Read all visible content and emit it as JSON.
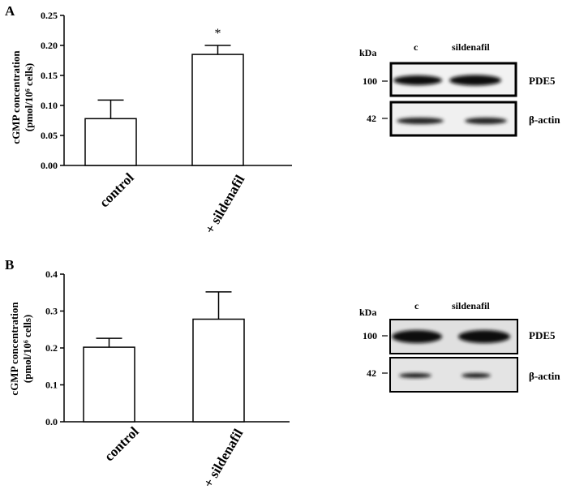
{
  "chart_data": [
    {
      "type": "bar",
      "panel": "A",
      "categories": [
        "control",
        "+ sildenafil"
      ],
      "values": [
        0.078,
        0.185
      ],
      "errors": [
        0.031,
        0.015
      ],
      "annotations": [
        "",
        "*"
      ],
      "ylabel_line1": "cGMP concentration",
      "ylabel_line2": "(pmol/10⁶ cells)",
      "ylim": [
        0,
        0.25
      ],
      "yticks": [
        "0.00",
        "0.05",
        "0.10",
        "0.15",
        "0.20",
        "0.25"
      ],
      "bar_color": "#ffffff",
      "edge_color": "#000000"
    },
    {
      "type": "bar",
      "panel": "B",
      "categories": [
        "control",
        "+ sildenafil"
      ],
      "values": [
        0.202,
        0.278
      ],
      "errors": [
        0.024,
        0.074
      ],
      "annotations": [
        "",
        ""
      ],
      "ylabel_line1": "cGMP concentration",
      "ylabel_line2": "(pmol/10⁶ cells)",
      "ylim": [
        0,
        0.4
      ],
      "yticks": [
        "0.0",
        "0.1",
        "0.2",
        "0.3",
        "0.4"
      ],
      "bar_color": "#ffffff",
      "edge_color": "#000000"
    }
  ],
  "blots": [
    {
      "unit": "kDa",
      "lanes": [
        "c",
        "sildenafil"
      ],
      "rows": [
        {
          "marker": "100",
          "label": "PDE5"
        },
        {
          "marker": "42",
          "label": "β-actin"
        }
      ]
    },
    {
      "unit": "kDa",
      "lanes": [
        "c",
        "sildenafil"
      ],
      "rows": [
        {
          "marker": "100",
          "label": "PDE5"
        },
        {
          "marker": "42",
          "label": "β-actin"
        }
      ]
    }
  ]
}
